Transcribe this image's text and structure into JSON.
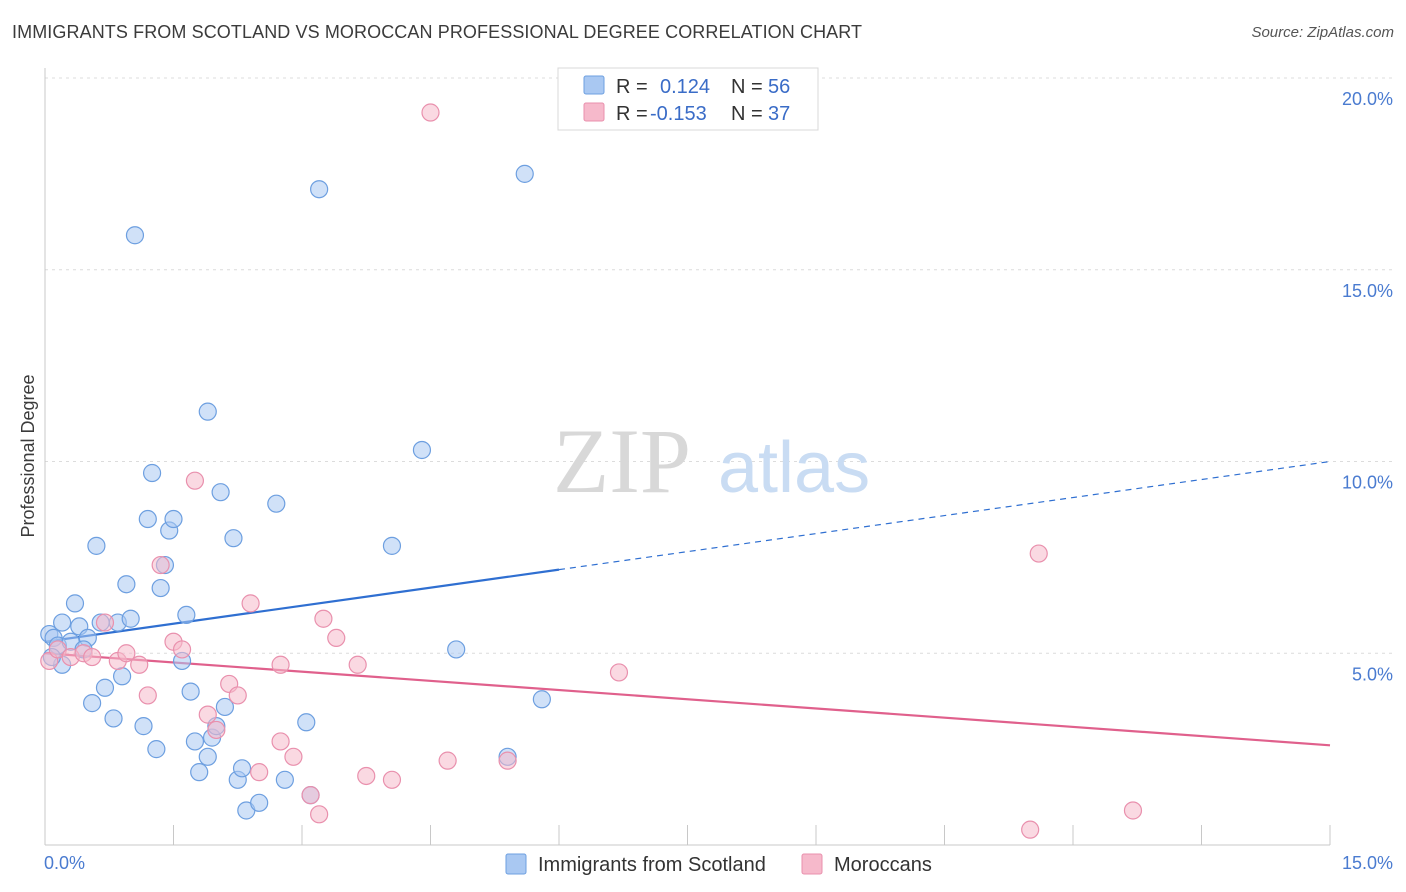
{
  "title": "IMMIGRANTS FROM SCOTLAND VS MOROCCAN PROFESSIONAL DEGREE CORRELATION CHART",
  "source": "Source: ZipAtlas.com",
  "watermark": {
    "zip": "ZIP",
    "atlas": "atlas"
  },
  "legend": {
    "rows": [
      {
        "r_label": "R =",
        "r_value": "0.124",
        "n_label": "N =",
        "n_value": "56",
        "color": "#a9c8f2"
      },
      {
        "r_label": "R =",
        "r_value": "-0.153",
        "n_label": "N =",
        "n_value": "37",
        "color": "#f6b9cb"
      }
    ]
  },
  "chart_data": {
    "type": "scatter",
    "ylabel": "Professional Degree",
    "xlim": [
      0,
      15
    ],
    "ylim": [
      0,
      20
    ],
    "x_tick_labels": [
      {
        "value": 0,
        "label": "0.0%"
      },
      {
        "value": 15,
        "label": "15.0%"
      }
    ],
    "y_tick_labels": [
      {
        "value": 5,
        "label": "5.0%"
      },
      {
        "value": 10,
        "label": "10.0%"
      },
      {
        "value": 15,
        "label": "15.0%"
      },
      {
        "value": 20,
        "label": "20.0%"
      }
    ],
    "grid": true,
    "legend_position": "top-center",
    "series": [
      {
        "name": "Immigrants from Scotland",
        "color": "#6d9fe0",
        "fill": "#a9c8f2",
        "trend_color": "#2f6fd1",
        "trend": {
          "x0": 0,
          "y0": 5.3,
          "x_solid_end": 6,
          "x1": 15,
          "y1": 10.0
        },
        "points": [
          [
            0.05,
            5.5
          ],
          [
            0.1,
            5.4
          ],
          [
            0.15,
            5.2
          ],
          [
            0.2,
            4.7
          ],
          [
            0.2,
            5.8
          ],
          [
            0.3,
            5.3
          ],
          [
            0.35,
            6.3
          ],
          [
            0.4,
            5.7
          ],
          [
            0.5,
            5.4
          ],
          [
            0.55,
            3.7
          ],
          [
            0.6,
            7.8
          ],
          [
            0.65,
            5.8
          ],
          [
            0.7,
            4.1
          ],
          [
            0.8,
            3.3
          ],
          [
            0.85,
            5.8
          ],
          [
            0.9,
            4.4
          ],
          [
            0.95,
            6.8
          ],
          [
            1.0,
            5.9
          ],
          [
            1.05,
            15.9
          ],
          [
            1.15,
            3.1
          ],
          [
            1.2,
            8.5
          ],
          [
            1.25,
            9.7
          ],
          [
            1.3,
            2.5
          ],
          [
            1.35,
            6.7
          ],
          [
            1.4,
            7.3
          ],
          [
            1.45,
            8.2
          ],
          [
            1.5,
            8.5
          ],
          [
            1.6,
            4.8
          ],
          [
            1.65,
            6.0
          ],
          [
            1.7,
            4.0
          ],
          [
            1.75,
            2.7
          ],
          [
            1.8,
            1.9
          ],
          [
            1.9,
            11.3
          ],
          [
            1.9,
            2.3
          ],
          [
            1.95,
            2.8
          ],
          [
            2.0,
            3.1
          ],
          [
            2.05,
            9.2
          ],
          [
            2.1,
            3.6
          ],
          [
            2.2,
            8.0
          ],
          [
            2.25,
            1.7
          ],
          [
            2.3,
            2.0
          ],
          [
            2.35,
            0.9
          ],
          [
            2.5,
            1.1
          ],
          [
            2.7,
            8.9
          ],
          [
            2.8,
            1.7
          ],
          [
            3.05,
            3.2
          ],
          [
            3.1,
            1.3
          ],
          [
            3.2,
            17.1
          ],
          [
            4.05,
            7.8
          ],
          [
            4.4,
            10.3
          ],
          [
            4.8,
            5.1
          ],
          [
            5.4,
            2.3
          ],
          [
            5.6,
            17.5
          ],
          [
            5.8,
            3.8
          ],
          [
            0.08,
            4.9
          ],
          [
            0.45,
            5.1
          ]
        ]
      },
      {
        "name": "Moroccans",
        "color": "#e990ad",
        "fill": "#f6b9cb",
        "trend_color": "#e0608c",
        "trend": {
          "x0": 0,
          "y0": 5.0,
          "x_solid_end": 15,
          "x1": 15,
          "y1": 2.6
        },
        "points": [
          [
            0.05,
            4.8
          ],
          [
            0.15,
            5.1
          ],
          [
            0.3,
            4.9
          ],
          [
            0.45,
            5.0
          ],
          [
            0.55,
            4.9
          ],
          [
            0.7,
            5.8
          ],
          [
            0.85,
            4.8
          ],
          [
            0.95,
            5.0
          ],
          [
            1.1,
            4.7
          ],
          [
            1.2,
            3.9
          ],
          [
            1.35,
            7.3
          ],
          [
            1.5,
            5.3
          ],
          [
            1.6,
            5.1
          ],
          [
            1.75,
            9.5
          ],
          [
            1.9,
            3.4
          ],
          [
            2.0,
            3.0
          ],
          [
            2.15,
            4.2
          ],
          [
            2.25,
            3.9
          ],
          [
            2.4,
            6.3
          ],
          [
            2.5,
            1.9
          ],
          [
            2.75,
            2.7
          ],
          [
            2.75,
            4.7
          ],
          [
            2.9,
            2.3
          ],
          [
            3.1,
            1.3
          ],
          [
            3.2,
            0.8
          ],
          [
            3.25,
            5.9
          ],
          [
            3.4,
            5.4
          ],
          [
            3.65,
            4.7
          ],
          [
            3.75,
            1.8
          ],
          [
            4.05,
            1.7
          ],
          [
            4.5,
            19.1
          ],
          [
            4.7,
            2.2
          ],
          [
            5.4,
            2.2
          ],
          [
            6.7,
            4.5
          ],
          [
            11.5,
            0.4
          ],
          [
            11.6,
            7.6
          ],
          [
            12.7,
            0.9
          ]
        ]
      }
    ]
  }
}
